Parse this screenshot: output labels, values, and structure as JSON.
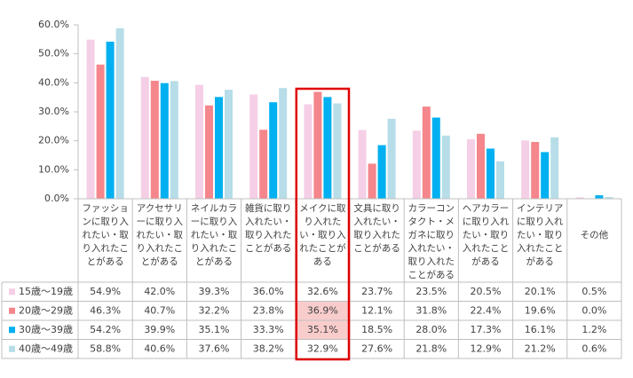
{
  "chart_data": {
    "type": "bar",
    "categories": [
      "ファッションに取り入れたい・取り入れたことがある",
      "アクセサリーに取り入れたい・取り入れたことがある",
      "ネイルカラーに取り入れたい・取り入れたことがある",
      "雑貨に取り入れたい・取り入れたことがある",
      "メイクに取り入れたい・取り入れたことがある",
      "文具に取り入れたい・取り入れたことがある",
      "カラーコンタクト・メガネに取り入れたい・取り入れたことがある",
      "ヘアカラーに取り入れたい・取り入れたことがある",
      "インテリアに取り入れたい・取り入れたことがある",
      "その他"
    ],
    "series": [
      {
        "name": "15歳～19歳",
        "color": "#f5cfe6",
        "values": [
          54.9,
          42.0,
          39.3,
          36.0,
          32.6,
          23.7,
          23.5,
          20.5,
          20.1,
          0.5
        ],
        "value_labels": [
          "54.9%",
          "42.0%",
          "39.3%",
          "36.0%",
          "32.6%",
          "23.7%",
          "23.5%",
          "20.5%",
          "20.1%",
          "0.5%"
        ]
      },
      {
        "name": "20歳～29歳",
        "color": "#f4868c",
        "values": [
          46.3,
          40.7,
          32.2,
          23.8,
          36.9,
          12.1,
          31.8,
          22.4,
          19.6,
          0.0
        ],
        "value_labels": [
          "46.3%",
          "40.7%",
          "32.2%",
          "23.8%",
          "36.9%",
          "12.1%",
          "31.8%",
          "22.4%",
          "19.6%",
          "0.0%"
        ]
      },
      {
        "name": "30歳～39歳",
        "color": "#00b0f0",
        "values": [
          54.2,
          39.9,
          35.1,
          33.3,
          35.1,
          18.5,
          28.0,
          17.3,
          16.1,
          1.2
        ],
        "value_labels": [
          "54.2%",
          "39.9%",
          "35.1%",
          "33.3%",
          "35.1%",
          "18.5%",
          "28.0%",
          "17.3%",
          "16.1%",
          "1.2%"
        ]
      },
      {
        "name": "40歳～49歳",
        "color": "#b7dde8",
        "values": [
          58.8,
          40.6,
          37.6,
          38.2,
          32.9,
          27.6,
          21.8,
          12.9,
          21.2,
          0.6
        ],
        "value_labels": [
          "58.8%",
          "40.6%",
          "37.6%",
          "38.2%",
          "32.9%",
          "27.6%",
          "21.8%",
          "12.9%",
          "21.2%",
          "0.6%"
        ]
      }
    ],
    "ylim": [
      0,
      60
    ],
    "yticks": [
      {
        "value": 0,
        "label": "0.0%"
      },
      {
        "value": 10,
        "label": "10.0%"
      },
      {
        "value": 20,
        "label": "20.0%"
      },
      {
        "value": 30,
        "label": "30.0%"
      },
      {
        "value": 40,
        "label": "40.0%"
      },
      {
        "value": 50,
        "label": "50.0%"
      },
      {
        "value": 60,
        "label": "60.0%"
      }
    ],
    "grid": false
  }
}
